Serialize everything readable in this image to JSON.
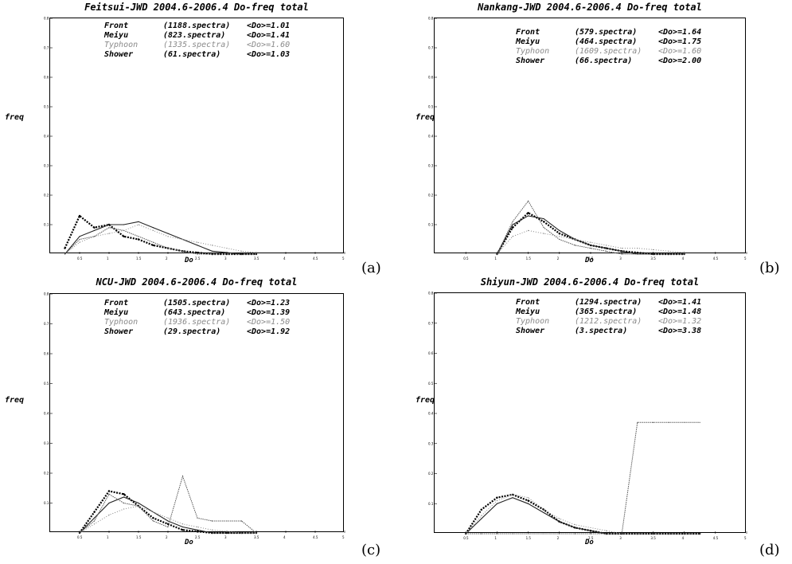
{
  "panels": [
    {
      "id": "a",
      "title": "Feitsui-JWD 2004.6-2006.4 Do-freq total",
      "panel_label": "(a)",
      "legend": [
        {
          "type": "Front",
          "spectra": "(1188.spectra)",
          "mean": "<Do>=1.01"
        },
        {
          "type": "Meiyu",
          "spectra": "(823.spectra)",
          "mean": "<Do>=1.41"
        },
        {
          "type": "Typhoon",
          "spectra": "(1335.spectra)",
          "mean": "<Do>=1.60"
        },
        {
          "type": "Shower",
          "spectra": "(61.spectra)",
          "mean": "<Do>=1.03"
        }
      ]
    },
    {
      "id": "b",
      "title": "Nankang-JWD 2004.6-2006.4 Do-freq total",
      "panel_label": "(b)",
      "legend": [
        {
          "type": "Front",
          "spectra": "(579.spectra)",
          "mean": "<Do>=1.64"
        },
        {
          "type": "Meiyu",
          "spectra": "(464.spectra)",
          "mean": "<Do>=1.75"
        },
        {
          "type": "Typhoon",
          "spectra": "(1609.spectra)",
          "mean": "<Do>=1.60"
        },
        {
          "type": "Shower",
          "spectra": "(66.spectra)",
          "mean": "<Do>=2.00"
        }
      ]
    },
    {
      "id": "c",
      "title": "NCU-JWD 2004.6-2006.4 Do-freq total",
      "panel_label": "(c)",
      "legend": [
        {
          "type": "Front",
          "spectra": "(1505.spectra)",
          "mean": "<Do>=1.23"
        },
        {
          "type": "Meiyu",
          "spectra": "(643.spectra)",
          "mean": "<Do>=1.39"
        },
        {
          "type": "Typhoon",
          "spectra": "(1936.spectra)",
          "mean": "<Do>=1.50"
        },
        {
          "type": "Shower",
          "spectra": "(29.spectra)",
          "mean": "<Do>=1.92"
        }
      ]
    },
    {
      "id": "d",
      "title": "Shiyun-JWD 2004.6-2006.4 Do-freq total",
      "panel_label": "(d)",
      "legend": [
        {
          "type": "Front",
          "spectra": "(1294.spectra)",
          "mean": "<Do>=1.41"
        },
        {
          "type": "Meiyu",
          "spectra": "(365.spectra)",
          "mean": "<Do>=1.48"
        },
        {
          "type": "Typhoon",
          "spectra": "(1212.spectra)",
          "mean": "<Do>=1.32"
        },
        {
          "type": "Shower",
          "spectra": "(3.spectra)",
          "mean": "<Do>=3.38"
        }
      ]
    }
  ],
  "colors": {
    "front": "#000000",
    "meiyu": "#222222",
    "typhoon": "#8a8a8a",
    "shower": "#555555"
  },
  "chart_data": [
    {
      "type": "line",
      "title": "Feitsui-JWD 2004.6-2006.4 Do-freq total",
      "xlabel": "Do",
      "ylabel": "freq",
      "xlim": [
        0,
        5
      ],
      "ylim": [
        0,
        0.8
      ],
      "xticks": [
        "0.5",
        "1",
        "1.5",
        "2",
        "2.5",
        "3",
        "3.5",
        "4",
        "4.5",
        "5"
      ],
      "yticks": [
        "0.1",
        "0.2",
        "0.3",
        "0.4",
        "0.5",
        "0.6",
        "0.7",
        "0.8"
      ],
      "x": [
        0.25,
        0.5,
        0.75,
        1.0,
        1.25,
        1.5,
        1.75,
        2.0,
        2.25,
        2.5,
        2.75,
        3.0,
        3.25,
        3.5
      ],
      "series": [
        {
          "name": "Front",
          "values": [
            0.02,
            0.13,
            0.09,
            0.1,
            0.06,
            0.05,
            0.03,
            0.02,
            0.01,
            0.005,
            0,
            0,
            0,
            0
          ]
        },
        {
          "name": "Meiyu",
          "values": [
            0.0,
            0.06,
            0.08,
            0.1,
            0.1,
            0.11,
            0.09,
            0.07,
            0.05,
            0.03,
            0.01,
            0.005,
            0,
            0
          ]
        },
        {
          "name": "Typhoon",
          "values": [
            0.0,
            0.04,
            0.06,
            0.07,
            0.08,
            0.1,
            0.08,
            0.06,
            0.05,
            0.04,
            0.03,
            0.02,
            0.01,
            0.005
          ]
        },
        {
          "name": "Shower",
          "values": [
            0.0,
            0.05,
            0.06,
            0.09,
            0.08,
            0.06,
            0.04,
            0.02,
            0.01,
            0,
            0,
            0,
            0,
            0
          ]
        }
      ]
    },
    {
      "type": "line",
      "title": "Nankang-JWD 2004.6-2006.4 Do-freq total",
      "xlabel": "Do",
      "ylabel": "freq",
      "xlim": [
        0,
        5
      ],
      "ylim": [
        0,
        0.8
      ],
      "xticks": [
        "0.5",
        "1",
        "1.5",
        "2",
        "2.5",
        "3",
        "3.5",
        "4",
        "4.5",
        "5"
      ],
      "yticks": [
        "0.1",
        "0.2",
        "0.3",
        "0.4",
        "0.5",
        "0.6",
        "0.7",
        "0.8"
      ],
      "x": [
        1.0,
        1.25,
        1.5,
        1.75,
        2.0,
        2.25,
        2.5,
        2.75,
        3.0,
        3.25,
        3.5,
        3.75,
        4.0
      ],
      "series": [
        {
          "name": "Front",
          "values": [
            0.0,
            0.09,
            0.14,
            0.11,
            0.07,
            0.05,
            0.03,
            0.02,
            0.01,
            0.005,
            0,
            0,
            0
          ]
        },
        {
          "name": "Meiyu",
          "values": [
            0.0,
            0.1,
            0.13,
            0.12,
            0.08,
            0.05,
            0.03,
            0.02,
            0.01,
            0,
            0,
            0,
            0
          ]
        },
        {
          "name": "Typhoon",
          "values": [
            0.0,
            0.06,
            0.08,
            0.07,
            0.06,
            0.05,
            0.04,
            0.03,
            0.02,
            0.02,
            0.015,
            0.01,
            0.005
          ]
        },
        {
          "name": "Shower",
          "values": [
            0.0,
            0.11,
            0.18,
            0.09,
            0.05,
            0.03,
            0.02,
            0.01,
            0,
            0,
            0,
            0,
            0
          ]
        }
      ]
    },
    {
      "type": "line",
      "title": "NCU-JWD 2004.6-2006.4 Do-freq total",
      "xlabel": "Do",
      "ylabel": "freq",
      "xlim": [
        0,
        5
      ],
      "ylim": [
        0,
        0.8
      ],
      "xticks": [
        "0.5",
        "1",
        "1.5",
        "2",
        "2.5",
        "3",
        "3.5",
        "4",
        "4.5",
        "5"
      ],
      "yticks": [
        "0.1",
        "0.2",
        "0.3",
        "0.4",
        "0.5",
        "0.6",
        "0.7",
        "0.8"
      ],
      "x": [
        0.5,
        0.75,
        1.0,
        1.25,
        1.5,
        1.75,
        2.0,
        2.25,
        2.5,
        2.75,
        3.0,
        3.25,
        3.5
      ],
      "series": [
        {
          "name": "Front",
          "values": [
            0.0,
            0.07,
            0.14,
            0.13,
            0.09,
            0.05,
            0.03,
            0.01,
            0.005,
            0,
            0,
            0,
            0
          ]
        },
        {
          "name": "Meiyu",
          "values": [
            0.0,
            0.05,
            0.1,
            0.12,
            0.1,
            0.07,
            0.04,
            0.02,
            0.01,
            0,
            0,
            0,
            0
          ]
        },
        {
          "name": "Typhoon",
          "values": [
            0.0,
            0.03,
            0.06,
            0.08,
            0.09,
            0.07,
            0.05,
            0.03,
            0.02,
            0.01,
            0.005,
            0,
            0
          ]
        },
        {
          "name": "Shower",
          "values": [
            0.0,
            0.04,
            0.13,
            0.1,
            0.09,
            0.04,
            0.02,
            0.19,
            0.05,
            0.04,
            0.04,
            0.04,
            0.0
          ]
        }
      ]
    },
    {
      "type": "line",
      "title": "Shiyun-JWD 2004.6-2006.4 Do-freq total",
      "xlabel": "Do",
      "ylabel": "freq",
      "xlim": [
        0,
        5
      ],
      "ylim": [
        0,
        0.8
      ],
      "xticks": [
        "0.5",
        "1",
        "1.5",
        "2",
        "2.5",
        "3",
        "3.5",
        "4",
        "4.5",
        "5"
      ],
      "yticks": [
        "0.1",
        "0.2",
        "0.3",
        "0.4",
        "0.5",
        "0.6",
        "0.7",
        "0.8"
      ],
      "x": [
        0.5,
        0.75,
        1.0,
        1.25,
        1.5,
        1.75,
        2.0,
        2.25,
        2.5,
        2.75,
        3.0,
        3.25,
        3.5,
        3.75,
        4.0,
        4.25
      ],
      "series": [
        {
          "name": "Front",
          "values": [
            0.0,
            0.08,
            0.12,
            0.13,
            0.11,
            0.08,
            0.04,
            0.02,
            0.01,
            0,
            0,
            0,
            0,
            0,
            0,
            0
          ]
        },
        {
          "name": "Meiyu",
          "values": [
            0.0,
            0.05,
            0.1,
            0.12,
            0.1,
            0.07,
            0.04,
            0.02,
            0.01,
            0,
            0,
            0,
            0,
            0,
            0,
            0
          ]
        },
        {
          "name": "Typhoon",
          "values": [
            0.0,
            0.06,
            0.11,
            0.13,
            0.12,
            0.08,
            0.05,
            0.03,
            0.02,
            0.01,
            0,
            0,
            0,
            0,
            0,
            0
          ]
        },
        {
          "name": "Shower",
          "values": [
            0,
            0,
            0,
            0,
            0,
            0,
            0,
            0,
            0,
            0,
            0,
            0.37,
            0.37,
            0.37,
            0.37,
            0.37
          ]
        }
      ]
    }
  ]
}
